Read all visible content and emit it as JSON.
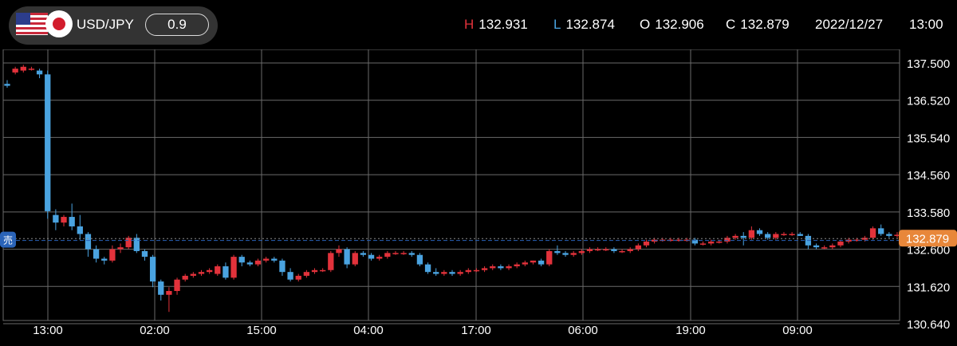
{
  "header": {
    "pair": "USD/JPY",
    "lot": "0.9",
    "high_key": "H",
    "high": "132.931",
    "low_key": "L",
    "low": "132.874",
    "open_key": "O",
    "open": "132.906",
    "close_key": "C",
    "close": "132.879",
    "date": "2022/12/27",
    "time": "13:00",
    "flags": [
      "us-flag-icon",
      "japan-flag-icon"
    ]
  },
  "colors": {
    "up": "#e2323b",
    "down": "#4aa3e0",
    "grid": "#6a6a6a",
    "current_price_tag": "#e8873a",
    "sell_marker": "#2a63b8",
    "sell_line": "#2a63b8"
  },
  "sell_label": "売",
  "chart_data": {
    "type": "candlestick",
    "title": "",
    "xlabel": "",
    "ylabel": "",
    "ylim": [
      130.16,
      137.75
    ],
    "y_ticks": [
      "137.500",
      "136.520",
      "135.540",
      "134.560",
      "133.580",
      "132.600",
      "131.620",
      "130.640"
    ],
    "x_ticks": [
      "13:00",
      "02:00",
      "15:00",
      "04:00",
      "17:00",
      "06:00",
      "19:00",
      "09:00"
    ],
    "current_price": "132.879",
    "sell_line_price": 132.83,
    "grid": true,
    "candles": [
      [
        136.95,
        137.05,
        136.85,
        136.9
      ],
      [
        137.25,
        137.4,
        137.2,
        137.35
      ],
      [
        137.3,
        137.45,
        137.25,
        137.4
      ],
      [
        137.35,
        137.4,
        137.3,
        137.35
      ],
      [
        137.3,
        137.35,
        137.1,
        137.2
      ],
      [
        137.2,
        137.3,
        133.4,
        133.6
      ],
      [
        133.5,
        133.65,
        133.1,
        133.3
      ],
      [
        133.3,
        133.5,
        133.2,
        133.45
      ],
      [
        133.45,
        133.8,
        133.1,
        133.2
      ],
      [
        133.2,
        133.5,
        132.85,
        133.0
      ],
      [
        133.0,
        133.05,
        132.4,
        132.6
      ],
      [
        132.6,
        132.7,
        132.25,
        132.35
      ],
      [
        132.35,
        132.4,
        132.2,
        132.3
      ],
      [
        132.3,
        132.7,
        132.25,
        132.6
      ],
      [
        132.6,
        132.75,
        132.5,
        132.65
      ],
      [
        132.65,
        132.95,
        132.6,
        132.9
      ],
      [
        132.9,
        133.0,
        132.5,
        132.55
      ],
      [
        132.55,
        132.6,
        132.3,
        132.4
      ],
      [
        132.4,
        132.45,
        131.6,
        131.75
      ],
      [
        131.75,
        131.8,
        131.25,
        131.4
      ],
      [
        131.4,
        131.6,
        130.95,
        131.5
      ],
      [
        131.5,
        131.85,
        131.4,
        131.8
      ],
      [
        131.8,
        131.95,
        131.75,
        131.9
      ],
      [
        131.9,
        132.0,
        131.85,
        131.95
      ],
      [
        131.95,
        132.05,
        131.9,
        132.0
      ],
      [
        132.0,
        132.1,
        131.95,
        132.05
      ],
      [
        131.95,
        132.2,
        131.9,
        132.15
      ],
      [
        132.15,
        132.25,
        131.8,
        131.85
      ],
      [
        131.85,
        132.45,
        131.8,
        132.4
      ],
      [
        132.4,
        132.45,
        132.15,
        132.25
      ],
      [
        132.25,
        132.3,
        132.15,
        132.2
      ],
      [
        132.2,
        132.35,
        132.15,
        132.3
      ],
      [
        132.3,
        132.4,
        132.25,
        132.35
      ],
      [
        132.35,
        132.4,
        132.25,
        132.3
      ],
      [
        132.3,
        132.35,
        131.9,
        132.0
      ],
      [
        132.0,
        132.1,
        131.75,
        131.8
      ],
      [
        131.8,
        131.95,
        131.75,
        131.9
      ],
      [
        131.9,
        132.05,
        131.85,
        132.0
      ],
      [
        132.0,
        132.1,
        131.95,
        132.05
      ],
      [
        132.05,
        132.1,
        132.0,
        132.05
      ],
      [
        132.05,
        132.55,
        132.0,
        132.5
      ],
      [
        132.5,
        132.7,
        132.4,
        132.6
      ],
      [
        132.6,
        132.65,
        132.1,
        132.2
      ],
      [
        132.2,
        132.55,
        132.15,
        132.5
      ],
      [
        132.5,
        132.55,
        132.4,
        132.45
      ],
      [
        132.45,
        132.5,
        132.3,
        132.35
      ],
      [
        132.35,
        132.45,
        132.3,
        132.4
      ],
      [
        132.4,
        132.55,
        132.35,
        132.5
      ],
      [
        132.5,
        132.55,
        132.45,
        132.5
      ],
      [
        132.5,
        132.55,
        132.45,
        132.5
      ],
      [
        132.5,
        132.55,
        132.4,
        132.45
      ],
      [
        132.45,
        132.5,
        132.15,
        132.2
      ],
      [
        132.2,
        132.25,
        131.95,
        132.0
      ],
      [
        132.0,
        132.1,
        131.9,
        131.95
      ],
      [
        131.95,
        132.05,
        131.9,
        132.0
      ],
      [
        132.0,
        132.05,
        131.9,
        131.95
      ],
      [
        131.95,
        132.05,
        131.9,
        132.0
      ],
      [
        132.0,
        132.1,
        131.95,
        132.05
      ],
      [
        132.05,
        132.1,
        132.0,
        132.05
      ],
      [
        132.05,
        132.15,
        132.0,
        132.1
      ],
      [
        132.1,
        132.2,
        132.05,
        132.15
      ],
      [
        132.15,
        132.2,
        132.05,
        132.1
      ],
      [
        132.1,
        132.2,
        132.05,
        132.15
      ],
      [
        132.15,
        132.25,
        132.1,
        132.2
      ],
      [
        132.2,
        132.3,
        132.15,
        132.25
      ],
      [
        132.25,
        132.3,
        132.2,
        132.3
      ],
      [
        132.3,
        132.35,
        132.15,
        132.2
      ],
      [
        132.2,
        132.6,
        132.15,
        132.55
      ],
      [
        132.55,
        132.7,
        132.45,
        132.5
      ],
      [
        132.5,
        132.55,
        132.4,
        132.45
      ],
      [
        132.45,
        132.55,
        132.4,
        132.5
      ],
      [
        132.5,
        132.6,
        132.45,
        132.55
      ],
      [
        132.55,
        132.65,
        132.5,
        132.6
      ],
      [
        132.6,
        132.65,
        132.55,
        132.6
      ],
      [
        132.6,
        132.65,
        132.55,
        132.6
      ],
      [
        132.6,
        132.65,
        132.5,
        132.55
      ],
      [
        132.55,
        132.6,
        132.5,
        132.55
      ],
      [
        132.55,
        132.65,
        132.5,
        132.6
      ],
      [
        132.6,
        132.75,
        132.55,
        132.7
      ],
      [
        132.7,
        132.85,
        132.65,
        132.8
      ],
      [
        132.8,
        132.9,
        132.75,
        132.85
      ],
      [
        132.85,
        132.9,
        132.8,
        132.85
      ],
      [
        132.85,
        132.9,
        132.8,
        132.85
      ],
      [
        132.85,
        132.9,
        132.8,
        132.85
      ],
      [
        132.85,
        132.9,
        132.8,
        132.85
      ],
      [
        132.85,
        132.9,
        132.7,
        132.75
      ],
      [
        132.75,
        132.8,
        132.7,
        132.75
      ],
      [
        132.75,
        132.85,
        132.7,
        132.8
      ],
      [
        132.8,
        132.85,
        132.75,
        132.8
      ],
      [
        132.8,
        132.95,
        132.75,
        132.9
      ],
      [
        132.9,
        133.0,
        132.85,
        132.95
      ],
      [
        132.95,
        133.05,
        132.7,
        132.9
      ],
      [
        132.9,
        133.2,
        132.85,
        133.1
      ],
      [
        133.1,
        133.15,
        132.95,
        133.0
      ],
      [
        133.0,
        133.05,
        132.85,
        132.9
      ],
      [
        132.9,
        133.05,
        132.85,
        133.0
      ],
      [
        133.0,
        133.05,
        132.95,
        133.0
      ],
      [
        133.0,
        133.05,
        132.95,
        133.0
      ],
      [
        133.0,
        133.05,
        132.95,
        132.95
      ],
      [
        132.95,
        133.0,
        132.6,
        132.7
      ],
      [
        132.7,
        132.75,
        132.6,
        132.65
      ],
      [
        132.65,
        132.7,
        132.6,
        132.65
      ],
      [
        132.65,
        132.75,
        132.6,
        132.7
      ],
      [
        132.7,
        132.85,
        132.65,
        132.8
      ],
      [
        132.8,
        132.9,
        132.75,
        132.85
      ],
      [
        132.85,
        132.9,
        132.8,
        132.85
      ],
      [
        132.85,
        132.95,
        132.8,
        132.9
      ],
      [
        132.9,
        133.2,
        132.85,
        133.15
      ],
      [
        133.15,
        133.25,
        132.95,
        133.0
      ],
      [
        133.0,
        133.05,
        132.9,
        132.95
      ],
      [
        132.95,
        133.05,
        132.9,
        132.98
      ]
    ]
  }
}
